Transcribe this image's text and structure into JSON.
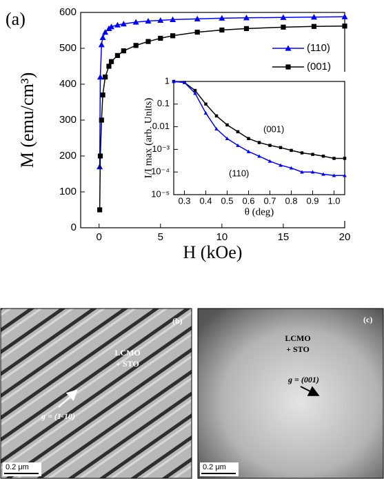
{
  "chart_data": [
    {
      "type": "line",
      "panel_label": "(a)",
      "xlabel": "H (kOe)",
      "ylabel": "M (emu/cm³)",
      "xlim": [
        -1.5,
        20
      ],
      "ylim": [
        0,
        600
      ],
      "xticks": [
        0,
        5,
        10,
        15,
        20
      ],
      "yticks": [
        0,
        100,
        200,
        300,
        400,
        500,
        600
      ],
      "legend": "upper right",
      "x": [
        0.05,
        0.1,
        0.2,
        0.3,
        0.5,
        0.8,
        1,
        1.5,
        2,
        3,
        4,
        5,
        6,
        8,
        10,
        12,
        15,
        17.5,
        20
      ],
      "series": [
        {
          "name": "(110)",
          "color": "#0000ff",
          "marker": "triangle",
          "values": [
            170,
            420,
            510,
            530,
            545,
            555,
            560,
            565,
            568,
            573,
            576,
            578,
            580,
            582,
            584,
            585,
            586,
            587,
            588
          ]
        },
        {
          "name": "(001)",
          "color": "#000000",
          "marker": "square",
          "values": [
            50,
            200,
            300,
            370,
            420,
            450,
            463,
            480,
            493,
            508,
            519,
            528,
            535,
            545,
            551,
            555,
            559,
            561,
            562
          ]
        }
      ]
    },
    {
      "type": "line",
      "xlabel": "θ (deg)",
      "ylabel": "I/I max (arb. Units)",
      "ylog": true,
      "xlim": [
        0.25,
        1.05
      ],
      "ylim": [
        1e-05,
        1
      ],
      "xticks": [
        0.3,
        0.4,
        0.5,
        0.6,
        0.7,
        0.8,
        0.9,
        {
          "value": 1,
          "label": "1.0"
        }
      ],
      "yticks": [
        1,
        0.1,
        0.01,
        {
          "value": 0.001,
          "label": "10⁻³"
        },
        {
          "value": 0.0001,
          "label": "10⁻⁴"
        },
        {
          "value": 1e-05,
          "label": "10⁻⁵"
        }
      ],
      "annotations": [
        "(001)",
        "(110)"
      ],
      "x": [
        0.25,
        0.3,
        0.35,
        0.4,
        0.45,
        0.5,
        0.55,
        0.6,
        0.65,
        0.7,
        0.75,
        0.8,
        0.85,
        0.9,
        0.95,
        1.0,
        1.05
      ],
      "series": [
        {
          "name": "(001)",
          "color": "#000000",
          "marker": "square",
          "values": [
            1,
            0.9,
            0.4,
            0.1,
            0.03,
            0.012,
            0.006,
            0.003,
            0.002,
            0.0015,
            0.0012,
            0.0009,
            0.0007,
            0.0006,
            0.0005,
            0.0004,
            0.0004
          ]
        },
        {
          "name": "(110)",
          "color": "#0000ff",
          "marker": "triangle",
          "values": [
            1,
            0.9,
            0.3,
            0.04,
            0.008,
            0.003,
            0.0015,
            0.0008,
            0.0005,
            0.0003,
            0.0002,
            0.00015,
            0.0001,
            0.0001,
            8e-05,
            7e-05,
            7e-05
          ]
        }
      ]
    }
  ],
  "images": [
    {
      "label": "(b)",
      "material": [
        "LCMO",
        "+ STO"
      ],
      "g_vector": "g = (1-10)",
      "scale_bar": "0.2 μm"
    },
    {
      "label": "(c)",
      "material": [
        "LCMO",
        "+ STO"
      ],
      "g_vector": "g = (001)",
      "scale_bar": "0.2 μm"
    }
  ]
}
